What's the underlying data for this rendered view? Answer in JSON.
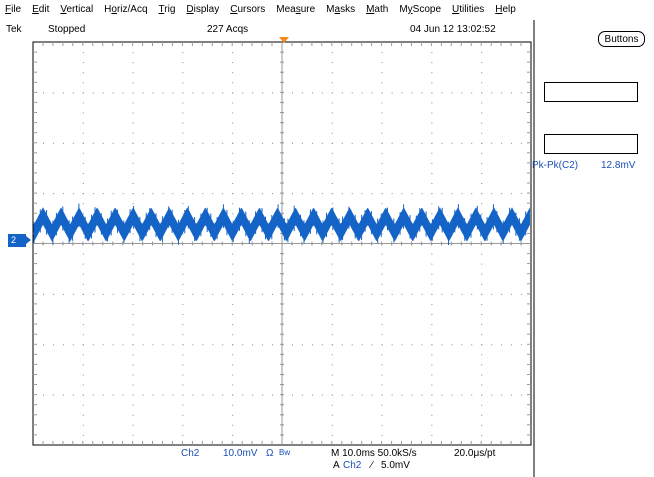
{
  "menu": {
    "items": [
      {
        "pre": "",
        "ul": "F",
        "post": "ile"
      },
      {
        "pre": "",
        "ul": "E",
        "post": "dit"
      },
      {
        "pre": "",
        "ul": "V",
        "post": "ertical"
      },
      {
        "pre": "H",
        "ul": "o",
        "post": "riz/Acq"
      },
      {
        "pre": "",
        "ul": "T",
        "post": "rig"
      },
      {
        "pre": "",
        "ul": "D",
        "post": "isplay"
      },
      {
        "pre": "",
        "ul": "C",
        "post": "ursors"
      },
      {
        "pre": "Mea",
        "ul": "s",
        "post": "ure"
      },
      {
        "pre": "M",
        "ul": "a",
        "post": "sks"
      },
      {
        "pre": "",
        "ul": "M",
        "post": "ath"
      },
      {
        "pre": "M",
        "ul": "y",
        "post": "Scope"
      },
      {
        "pre": "",
        "ul": "U",
        "post": "tilities"
      },
      {
        "pre": "",
        "ul": "H",
        "post": "elp"
      }
    ]
  },
  "status": {
    "brand": "Tek",
    "run_state": "Stopped",
    "acquisitions": "227 Acqs",
    "datetime": "04 Jun 12 13:02:52"
  },
  "buttons_label": "Buttons",
  "measurement": {
    "label": "Pk-Pk(C2)",
    "value": "12.8mV"
  },
  "channel_marker": "2",
  "readout": {
    "channel": "Ch2",
    "scale": "10.0mV",
    "coupling": "Ω",
    "bw": "Bw",
    "horiz": "M 10.0ms 50.0kS/s",
    "res": "20.0μs/pt",
    "trig_prefix": "A",
    "trig_channel": "Ch2",
    "trig_slope": "∕",
    "trig_level": "5.0mV"
  },
  "colors": {
    "trace": "#1463c7",
    "trigger_marker": "#f28a1c",
    "text_blue": "#1a4fb3"
  }
}
